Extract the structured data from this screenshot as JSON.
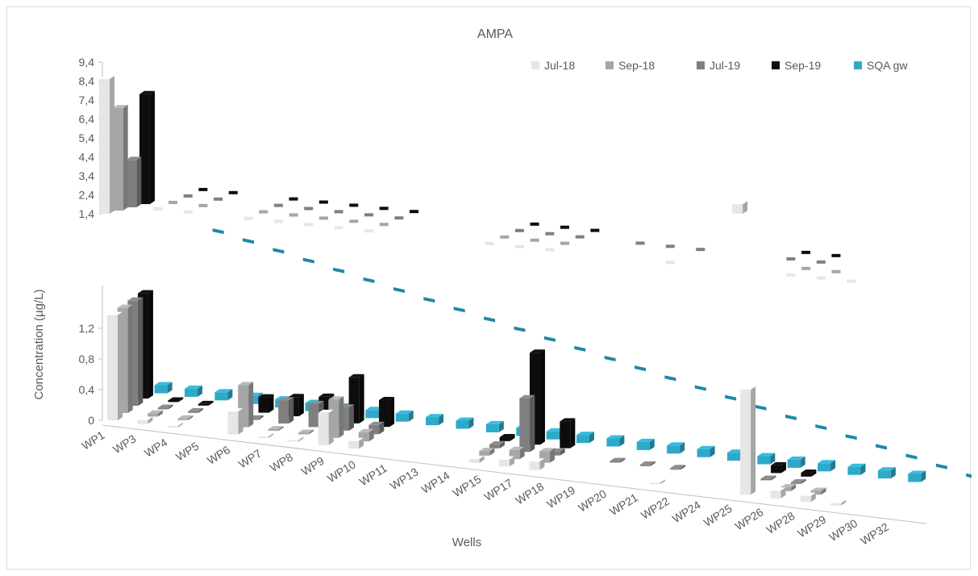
{
  "chart_data": {
    "type": "bar",
    "subtype": "3d-column-broken-axis",
    "title": "AMPA",
    "xlabel": "Wells",
    "ylabel": "Concentration (µg/L)",
    "categories": [
      "WP1",
      "WP3",
      "WP4",
      "WP5",
      "WP6",
      "WP7",
      "WP8",
      "WP9",
      "WP10",
      "WP11",
      "WP13",
      "WP14",
      "WP15",
      "WP17",
      "WP18",
      "WP19",
      "WP20",
      "WP21",
      "WP22",
      "WP24",
      "WP25",
      "WP26",
      "WP28",
      "WP29",
      "WP30",
      "WP32"
    ],
    "upper_axis": {
      "ticks": [
        "1,4",
        "2,4",
        "3,4",
        "4,4",
        "5,4",
        "6,4",
        "7,4",
        "8,4",
        "9,4"
      ],
      "ylim": [
        1.4,
        9.4
      ]
    },
    "lower_axis": {
      "ticks": [
        "0",
        "0,4",
        "0,8",
        "1,2"
      ],
      "ylim": [
        0,
        1.4
      ]
    },
    "legend_position": "top-right",
    "series": [
      {
        "name": "Jul-18",
        "color": "#e6e6e6",
        "values": [
          8.5,
          0.05,
          0.02,
          null,
          0.3,
          0.02,
          0.02,
          0.42,
          0.1,
          null,
          null,
          null,
          0.05,
          0.09,
          0.11,
          null,
          null,
          null,
          0.02,
          null,
          null,
          1.9,
          0.1,
          0.08,
          0.03,
          null
        ]
      },
      {
        "name": "Sep-18",
        "color": "#a6a6a6",
        "values": [
          6.8,
          0.04,
          0.02,
          null,
          0.55,
          0.02,
          0.02,
          0.5,
          0.12,
          null,
          null,
          null,
          0.06,
          0.12,
          0.15,
          null,
          null,
          null,
          null,
          null,
          null,
          null,
          0.05,
          0.05,
          null,
          null
        ]
      },
      {
        "name": "Jul-19",
        "color": "#7f7f7f",
        "values": [
          3.9,
          0.02,
          0.02,
          null,
          0.02,
          0.3,
          0.3,
          0.3,
          0.12,
          null,
          null,
          null,
          0.05,
          0.7,
          0.05,
          null,
          0.02,
          0.02,
          0.02,
          null,
          null,
          0.02,
          0.02,
          null,
          null,
          null
        ]
      },
      {
        "name": "Sep-19",
        "color": "#0d0d0d",
        "values": [
          7.2,
          0.02,
          0.02,
          null,
          0.2,
          0.25,
          0.3,
          0.6,
          0.35,
          null,
          null,
          null,
          0.05,
          1.2,
          0.35,
          null,
          null,
          null,
          null,
          null,
          null,
          0.1,
          0.05,
          null,
          null,
          null
        ]
      },
      {
        "name": "SQA gw",
        "color": "#2fa9c8",
        "values": [
          0.1,
          0.1,
          0.1,
          0.1,
          0.1,
          0.1,
          0.1,
          0.1,
          0.1,
          0.1,
          0.1,
          0.1,
          0.1,
          0.1,
          0.1,
          0.1,
          0.1,
          0.1,
          0.1,
          0.1,
          0.1,
          0.1,
          0.1,
          0.1,
          0.1,
          0.1
        ]
      }
    ]
  }
}
